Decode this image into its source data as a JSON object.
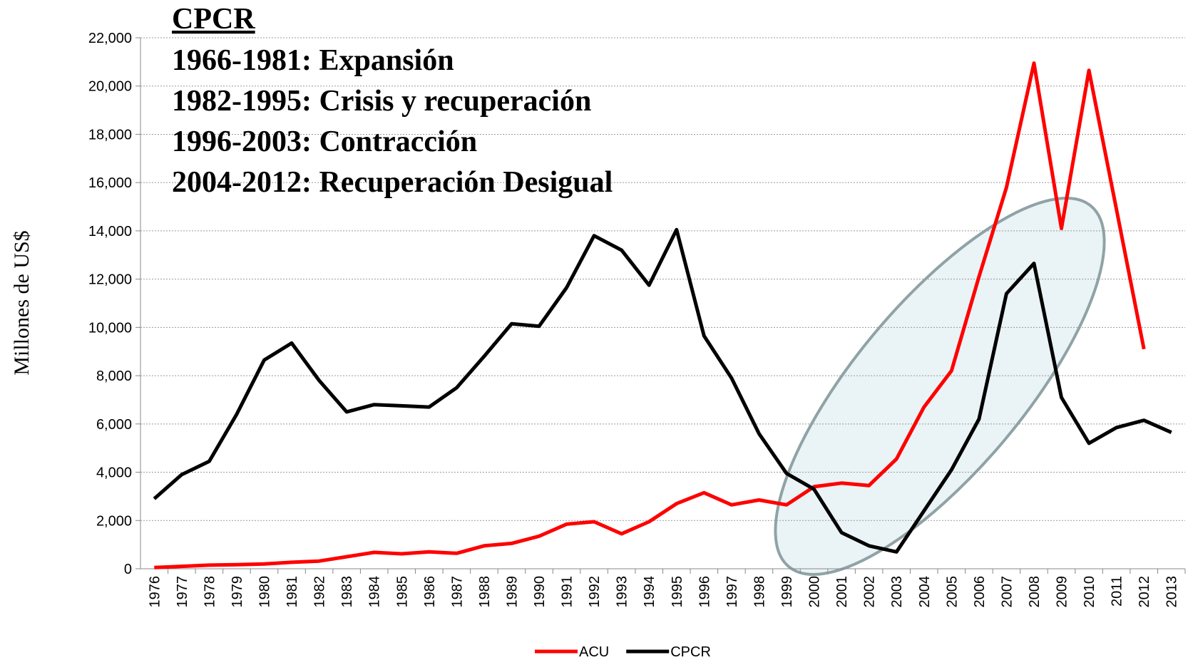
{
  "chart_data": {
    "type": "line",
    "title": "CPCR",
    "annotations": [
      "1966-1981: Expansión",
      "1982-1995: Crisis y recuperación",
      "1996-2003: Contracción",
      "2004-2012: Recuperación Desigual"
    ],
    "y_label": "Millones de US$",
    "categories": [
      "1976",
      "1977",
      "1978",
      "1979",
      "1980",
      "1981",
      "1982",
      "1983",
      "1984",
      "1985",
      "1986",
      "1987",
      "1988",
      "1989",
      "1990",
      "1991",
      "1992",
      "1993",
      "1994",
      "1995",
      "1996",
      "1997",
      "1998",
      "1999",
      "2000",
      "2001",
      "2002",
      "2003",
      "2004",
      "2005",
      "2006",
      "2007",
      "2008",
      "2009",
      "2010",
      "2011",
      "2012",
      "2013"
    ],
    "series": [
      {
        "name": "ACU",
        "color": "#ff0000",
        "values": [
          50,
          100,
          150,
          170,
          200,
          270,
          320,
          500,
          680,
          620,
          700,
          640,
          950,
          1050,
          1350,
          1850,
          1950,
          1450,
          1950,
          2700,
          3150,
          2650,
          2850,
          2650,
          3400,
          3550,
          3450,
          4550,
          6700,
          8200,
          12100,
          15800,
          20950,
          14100,
          20650,
          14900,
          9100,
          null
        ]
      },
      {
        "name": "CPCR",
        "color": "#000000",
        "values": [
          2900,
          3900,
          4450,
          6400,
          8650,
          9350,
          7800,
          6500,
          6800,
          6750,
          6700,
          7500,
          8800,
          10150,
          10050,
          11650,
          13800,
          13200,
          11750,
          14050,
          9650,
          7900,
          5600,
          3950,
          3300,
          1500,
          950,
          700,
          2400,
          4100,
          6200,
          11400,
          12650,
          7100,
          5200,
          5850,
          6150,
          5650
        ]
      }
    ],
    "ylim": [
      0,
      22000
    ],
    "yticks": [
      0,
      {
        "value": 2000,
        "label": "2,000"
      },
      {
        "value": 4000,
        "label": "4,000"
      },
      {
        "value": 6000,
        "label": "6,000"
      },
      {
        "value": 8000,
        "label": "8,000"
      },
      {
        "value": 10000,
        "label": "10,000"
      },
      {
        "value": 12000,
        "label": "12,000"
      },
      {
        "value": 14000,
        "label": "14,000"
      },
      {
        "value": 16000,
        "label": "16,000"
      },
      {
        "value": 18000,
        "label": "18,000"
      },
      {
        "value": 20000,
        "label": "20,000"
      },
      {
        "value": 22000,
        "label": "22,000"
      }
    ],
    "grid": true,
    "legend": "bottom"
  }
}
